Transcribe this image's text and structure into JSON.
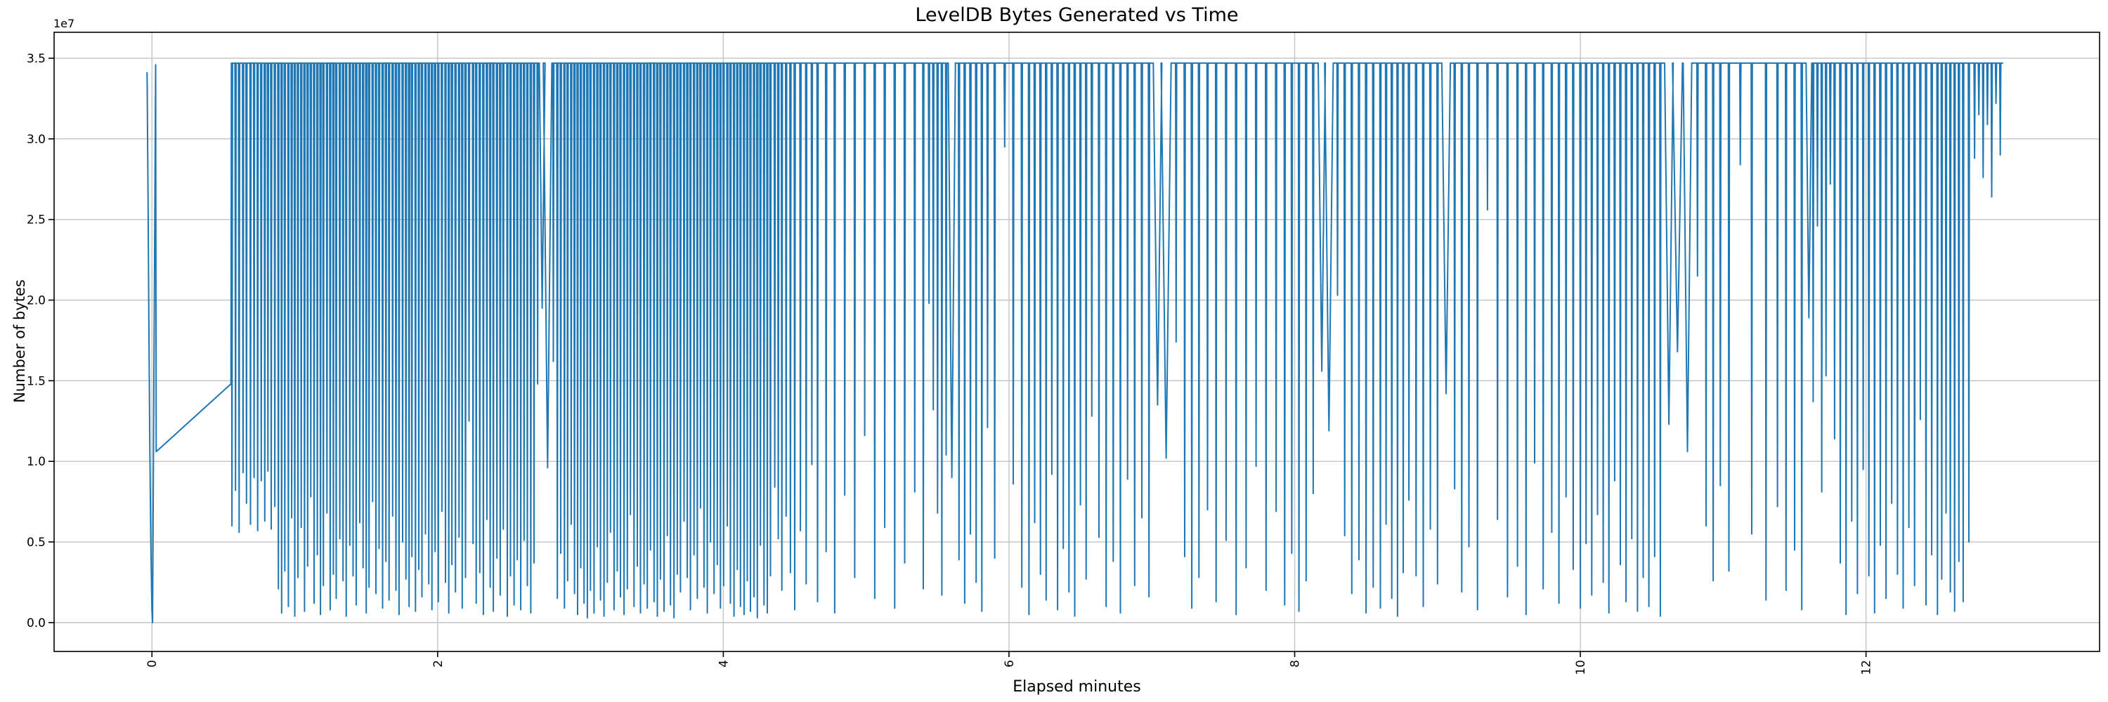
{
  "chart_data": {
    "type": "line",
    "title": "LevelDB Bytes Generated vs Time",
    "xlabel": "Elapsed minutes",
    "ylabel": "Number of bytes",
    "y_offset_label": "1e7",
    "legend": null,
    "grid": true,
    "line_color": "#1f77b4",
    "grid_color": "#c3c3c3",
    "spine_color": "#000000",
    "xlim": [
      -0.685,
      13.635
    ],
    "ylim_1e6": [
      -1.79,
      36.61
    ],
    "x_ticks": [
      0,
      2,
      4,
      6,
      8,
      10,
      12
    ],
    "x_tick_labels": [
      "0",
      "2",
      "4",
      "6",
      "8",
      "10",
      "12"
    ],
    "x_tick_rotation_deg": 90,
    "y_ticks_1e6": [
      0,
      5,
      10,
      15,
      20,
      25,
      30,
      35
    ],
    "y_tick_labels": [
      "0.0",
      "0.5",
      "1.0",
      "1.5",
      "2.0",
      "2.5",
      "3.0",
      "3.5"
    ],
    "units_note": "y values below are in units of 1e6 bytes; x in minutes",
    "baseline_top_1e6": 34.7,
    "spike_halfwidth_min": 0.004,
    "end_x": 12.96,
    "lead_points_1e6": [
      [
        -0.04,
        34.1
      ],
      [
        -0.034,
        34.1
      ],
      [
        -0.028,
        27.0
      ],
      [
        -0.022,
        19.0
      ],
      [
        -0.015,
        11.0
      ],
      [
        -0.007,
        4.5
      ],
      [
        0.0,
        0.8
      ],
      [
        0.004,
        0.0
      ],
      [
        0.026,
        34.6
      ],
      [
        0.03,
        10.6
      ],
      [
        0.553,
        14.8
      ]
    ],
    "spikes": [
      [
        0.56,
        6.0
      ],
      [
        0.585,
        8.2
      ],
      [
        0.61,
        5.6
      ],
      [
        0.638,
        9.3
      ],
      [
        0.662,
        7.4
      ],
      [
        0.69,
        6.1
      ],
      [
        0.715,
        9.0
      ],
      [
        0.74,
        5.7
      ],
      [
        0.765,
        8.8
      ],
      [
        0.79,
        6.3
      ],
      [
        0.812,
        9.4
      ],
      [
        0.835,
        5.8
      ],
      [
        0.86,
        7.2
      ],
      [
        0.885,
        2.1
      ],
      [
        0.908,
        0.6
      ],
      [
        0.93,
        3.2
      ],
      [
        0.955,
        1.0
      ],
      [
        0.978,
        6.5
      ],
      [
        1.0,
        0.4
      ],
      [
        1.022,
        2.8
      ],
      [
        1.045,
        5.9
      ],
      [
        1.068,
        0.7
      ],
      [
        1.09,
        3.5
      ],
      [
        1.112,
        7.8
      ],
      [
        1.135,
        1.2
      ],
      [
        1.158,
        4.2
      ],
      [
        1.18,
        0.5
      ],
      [
        1.2,
        2.3
      ],
      [
        1.225,
        6.8
      ],
      [
        1.248,
        0.8
      ],
      [
        1.27,
        3.0
      ],
      [
        1.29,
        1.5
      ],
      [
        1.315,
        5.2
      ],
      [
        1.338,
        2.6
      ],
      [
        1.36,
        0.4
      ],
      [
        1.385,
        4.8
      ],
      [
        1.408,
        2.9
      ],
      [
        1.43,
        1.1
      ],
      [
        1.455,
        6.2
      ],
      [
        1.478,
        3.4
      ],
      [
        1.5,
        0.6
      ],
      [
        1.52,
        2.2
      ],
      [
        1.545,
        7.5
      ],
      [
        1.568,
        1.8
      ],
      [
        1.59,
        4.6
      ],
      [
        1.615,
        0.9
      ],
      [
        1.638,
        3.8
      ],
      [
        1.66,
        1.4
      ],
      [
        1.685,
        6.6
      ],
      [
        1.708,
        2.0
      ],
      [
        1.73,
        0.5
      ],
      [
        1.755,
        5.0
      ],
      [
        1.778,
        2.7
      ],
      [
        1.8,
        1.0
      ],
      [
        1.82,
        4.1
      ],
      [
        1.845,
        0.7
      ],
      [
        1.868,
        3.3
      ],
      [
        1.89,
        1.6
      ],
      [
        1.915,
        5.5
      ],
      [
        1.938,
        2.4
      ],
      [
        1.96,
        0.8
      ],
      [
        1.982,
        4.4
      ],
      [
        2.005,
        1.3
      ],
      [
        2.03,
        6.9
      ],
      [
        2.055,
        2.5
      ],
      [
        2.078,
        0.6
      ],
      [
        2.1,
        3.6
      ],
      [
        2.125,
        1.9
      ],
      [
        2.15,
        5.3
      ],
      [
        2.172,
        0.9
      ],
      [
        2.195,
        2.8
      ],
      [
        2.22,
        12.5
      ],
      [
        2.248,
        4.9
      ],
      [
        2.27,
        1.2
      ],
      [
        2.295,
        3.1
      ],
      [
        2.32,
        0.5
      ],
      [
        2.345,
        6.4
      ],
      [
        2.368,
        2.2
      ],
      [
        2.39,
        0.7
      ],
      [
        2.415,
        4.0
      ],
      [
        2.438,
        1.7
      ],
      [
        2.46,
        5.8
      ],
      [
        2.488,
        0.4
      ],
      [
        2.51,
        2.9
      ],
      [
        2.535,
        1.1
      ],
      [
        2.558,
        3.9
      ],
      [
        2.582,
        0.8
      ],
      [
        2.605,
        5.1
      ],
      [
        2.628,
        2.3
      ],
      [
        2.652,
        0.6
      ],
      [
        2.675,
        3.7
      ],
      [
        2.7,
        14.8
      ],
      [
        2.732,
        19.5,
        0.02
      ],
      [
        2.77,
        9.6,
        0.03
      ],
      [
        2.81,
        16.2
      ],
      [
        2.838,
        1.5
      ],
      [
        2.862,
        4.3
      ],
      [
        2.888,
        0.9
      ],
      [
        2.91,
        2.6
      ],
      [
        2.935,
        6.1
      ],
      [
        2.958,
        1.8
      ],
      [
        2.98,
        0.5
      ],
      [
        3.002,
        3.4
      ],
      [
        3.025,
        1.2
      ],
      [
        3.048,
        0.3
      ],
      [
        3.07,
        2.0
      ],
      [
        3.095,
        0.6
      ],
      [
        3.118,
        4.7
      ],
      [
        3.14,
        1.4
      ],
      [
        3.165,
        0.4
      ],
      [
        3.188,
        2.5
      ],
      [
        3.21,
        5.6
      ],
      [
        3.235,
        0.8
      ],
      [
        3.258,
        3.2
      ],
      [
        3.28,
        1.6
      ],
      [
        3.305,
        0.5
      ],
      [
        3.328,
        2.1
      ],
      [
        3.35,
        6.7
      ],
      [
        3.375,
        1.0
      ],
      [
        3.398,
        3.5
      ],
      [
        3.42,
        0.6
      ],
      [
        3.445,
        2.4
      ],
      [
        3.468,
        0.9
      ],
      [
        3.49,
        4.5
      ],
      [
        3.515,
        1.3
      ],
      [
        3.538,
        0.4
      ],
      [
        3.56,
        2.7
      ],
      [
        3.585,
        0.7
      ],
      [
        3.608,
        5.4
      ],
      [
        3.63,
        1.1
      ],
      [
        3.655,
        0.3
      ],
      [
        3.678,
        3.0
      ],
      [
        3.7,
        1.9
      ],
      [
        3.725,
        6.3
      ],
      [
        3.748,
        2.8
      ],
      [
        3.77,
        0.8
      ],
      [
        3.795,
        4.2
      ],
      [
        3.818,
        1.5
      ],
      [
        3.84,
        7.1
      ],
      [
        3.865,
        2.2
      ],
      [
        3.888,
        0.6
      ],
      [
        3.91,
        5.0
      ],
      [
        3.935,
        1.8
      ],
      [
        3.958,
        3.6
      ],
      [
        3.98,
        0.9
      ],
      [
        4.002,
        2.3
      ],
      [
        4.028,
        6.0
      ],
      [
        4.05,
        1.2
      ],
      [
        4.075,
        0.4
      ],
      [
        4.098,
        3.3
      ],
      [
        4.12,
        1.0
      ],
      [
        4.145,
        0.5
      ],
      [
        4.168,
        2.6
      ],
      [
        4.19,
        0.7
      ],
      [
        4.215,
        1.6
      ],
      [
        4.238,
        0.3
      ],
      [
        4.26,
        4.8
      ],
      [
        4.285,
        1.1
      ],
      [
        4.308,
        0.6
      ],
      [
        4.33,
        2.9
      ],
      [
        4.36,
        8.4
      ],
      [
        4.385,
        5.2
      ],
      [
        4.41,
        2.0
      ],
      [
        4.44,
        6.6
      ],
      [
        4.47,
        3.1
      ],
      [
        4.5,
        0.8
      ],
      [
        4.54,
        5.7
      ],
      [
        4.58,
        2.4
      ],
      [
        4.62,
        9.8
      ],
      [
        4.66,
        1.3
      ],
      [
        4.72,
        4.4
      ],
      [
        4.78,
        0.6
      ],
      [
        4.85,
        7.9
      ],
      [
        4.92,
        2.8
      ],
      [
        4.99,
        11.6
      ],
      [
        5.06,
        1.5
      ],
      [
        5.13,
        5.9
      ],
      [
        5.2,
        0.9
      ],
      [
        5.27,
        3.7
      ],
      [
        5.34,
        8.1
      ],
      [
        5.4,
        2.1
      ],
      [
        5.44,
        19.8
      ],
      [
        5.47,
        13.2
      ],
      [
        5.5,
        6.8
      ],
      [
        5.53,
        1.7
      ],
      [
        5.56,
        10.4
      ],
      [
        5.6,
        9.0,
        0.025
      ],
      [
        5.65,
        3.9
      ],
      [
        5.69,
        1.2
      ],
      [
        5.73,
        5.5
      ],
      [
        5.77,
        2.5
      ],
      [
        5.81,
        0.7
      ],
      [
        5.85,
        12.1
      ],
      [
        5.9,
        4.0
      ],
      [
        5.97,
        29.5
      ],
      [
        6.03,
        8.6
      ],
      [
        6.09,
        2.2
      ],
      [
        6.14,
        0.5
      ],
      [
        6.18,
        6.2
      ],
      [
        6.22,
        3.0
      ],
      [
        6.26,
        1.4
      ],
      [
        6.3,
        9.2
      ],
      [
        6.34,
        0.8
      ],
      [
        6.38,
        4.6
      ],
      [
        6.42,
        1.9
      ],
      [
        6.46,
        0.4
      ],
      [
        6.5,
        7.3
      ],
      [
        6.54,
        2.7
      ],
      [
        6.58,
        12.8
      ],
      [
        6.63,
        5.3
      ],
      [
        6.68,
        1.0
      ],
      [
        6.73,
        3.8
      ],
      [
        6.78,
        0.6
      ],
      [
        6.83,
        8.9
      ],
      [
        6.88,
        2.3
      ],
      [
        6.93,
        6.5
      ],
      [
        6.98,
        1.6
      ],
      [
        7.04,
        13.5,
        0.03
      ],
      [
        7.1,
        10.2,
        0.035
      ],
      [
        7.17,
        17.4
      ],
      [
        7.23,
        4.1
      ],
      [
        7.28,
        0.9
      ],
      [
        7.33,
        2.8
      ],
      [
        7.39,
        7.0
      ],
      [
        7.45,
        1.3
      ],
      [
        7.52,
        5.1
      ],
      [
        7.59,
        0.5
      ],
      [
        7.66,
        3.4
      ],
      [
        7.73,
        9.7
      ],
      [
        7.8,
        2.0
      ],
      [
        7.87,
        6.9
      ],
      [
        7.93,
        1.1
      ],
      [
        7.98,
        4.3
      ],
      [
        8.03,
        0.7
      ],
      [
        8.08,
        2.6
      ],
      [
        8.13,
        8.0
      ],
      [
        8.19,
        15.6,
        0.025
      ],
      [
        8.24,
        11.9,
        0.03
      ],
      [
        8.3,
        20.3
      ],
      [
        8.35,
        5.4
      ],
      [
        8.4,
        1.8
      ],
      [
        8.45,
        3.9
      ],
      [
        8.5,
        0.6
      ],
      [
        8.55,
        2.2
      ],
      [
        8.6,
        0.9
      ],
      [
        8.64,
        6.1
      ],
      [
        8.68,
        1.5
      ],
      [
        8.72,
        0.4
      ],
      [
        8.76,
        3.1
      ],
      [
        8.8,
        7.6
      ],
      [
        8.85,
        2.9
      ],
      [
        8.9,
        1.0
      ],
      [
        8.95,
        5.8
      ],
      [
        9.0,
        2.4
      ],
      [
        9.06,
        14.2,
        0.03
      ],
      [
        9.12,
        8.3
      ],
      [
        9.17,
        1.9
      ],
      [
        9.22,
        4.7
      ],
      [
        9.28,
        0.8
      ],
      [
        9.35,
        25.6
      ],
      [
        9.42,
        6.4
      ],
      [
        9.49,
        1.6
      ],
      [
        9.56,
        3.5
      ],
      [
        9.62,
        0.5
      ],
      [
        9.68,
        9.9
      ],
      [
        9.74,
        2.1
      ],
      [
        9.8,
        5.6
      ],
      [
        9.85,
        1.2
      ],
      [
        9.9,
        7.8
      ],
      [
        9.95,
        3.3
      ],
      [
        10.0,
        0.9
      ],
      [
        10.04,
        4.9
      ],
      [
        10.08,
        1.7
      ],
      [
        10.12,
        6.7
      ],
      [
        10.16,
        2.5
      ],
      [
        10.2,
        0.6
      ],
      [
        10.24,
        8.8
      ],
      [
        10.28,
        3.6
      ],
      [
        10.32,
        1.3
      ],
      [
        10.36,
        5.2
      ],
      [
        10.4,
        0.7
      ],
      [
        10.44,
        2.8
      ],
      [
        10.48,
        1.0
      ],
      [
        10.52,
        4.1
      ],
      [
        10.56,
        0.4
      ],
      [
        10.62,
        12.3,
        0.03
      ],
      [
        10.68,
        16.8,
        0.035
      ],
      [
        10.75,
        10.6,
        0.03
      ],
      [
        10.82,
        21.5
      ],
      [
        10.88,
        6.0
      ],
      [
        10.93,
        2.6
      ],
      [
        10.98,
        8.5
      ],
      [
        11.04,
        3.2
      ],
      [
        11.12,
        28.4
      ],
      [
        11.2,
        5.5
      ],
      [
        11.3,
        1.4
      ],
      [
        11.38,
        7.2
      ],
      [
        11.44,
        2.0
      ],
      [
        11.5,
        4.5
      ],
      [
        11.55,
        0.8
      ],
      [
        11.6,
        18.9,
        0.02
      ],
      [
        11.63,
        13.7
      ],
      [
        11.66,
        24.6
      ],
      [
        11.69,
        8.1
      ],
      [
        11.72,
        15.3
      ],
      [
        11.75,
        27.2
      ],
      [
        11.78,
        11.4
      ],
      [
        11.82,
        3.7
      ],
      [
        11.86,
        0.5
      ],
      [
        11.9,
        6.3
      ],
      [
        11.94,
        1.8
      ],
      [
        11.98,
        9.5
      ],
      [
        12.02,
        2.9
      ],
      [
        12.06,
        0.6
      ],
      [
        12.1,
        4.8
      ],
      [
        12.14,
        1.5
      ],
      [
        12.18,
        7.4
      ],
      [
        12.22,
        3.0
      ],
      [
        12.26,
        0.9
      ],
      [
        12.3,
        5.9
      ],
      [
        12.34,
        2.3
      ],
      [
        12.38,
        12.6
      ],
      [
        12.42,
        1.1
      ],
      [
        12.46,
        4.2
      ],
      [
        12.5,
        0.5
      ],
      [
        12.53,
        2.7
      ],
      [
        12.56,
        6.8
      ],
      [
        12.59,
        1.9
      ],
      [
        12.62,
        0.7
      ],
      [
        12.65,
        3.8
      ],
      [
        12.68,
        1.3
      ],
      [
        12.72,
        5.0
      ],
      [
        12.76,
        28.8
      ],
      [
        12.79,
        31.5
      ],
      [
        12.82,
        27.6
      ],
      [
        12.85,
        30.9
      ],
      [
        12.88,
        26.4
      ],
      [
        12.91,
        32.2
      ],
      [
        12.94,
        29.0
      ]
    ]
  }
}
